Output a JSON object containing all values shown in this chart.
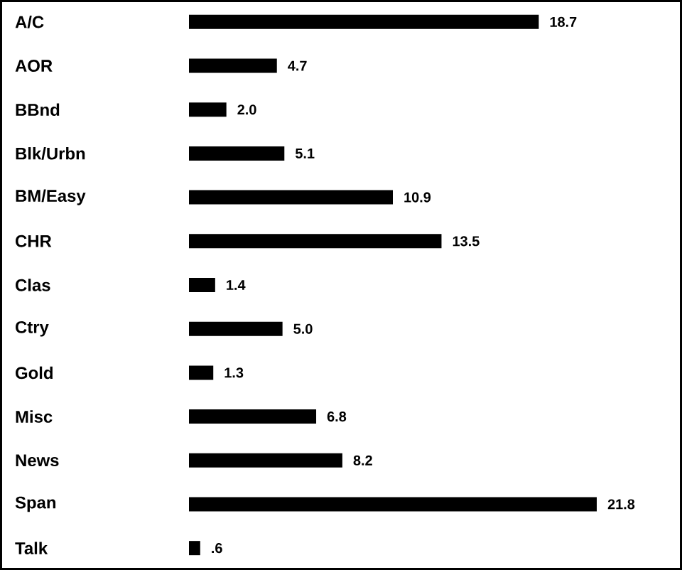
{
  "chart_data": {
    "type": "bar",
    "orientation": "horizontal",
    "categories": [
      "A/C",
      "AOR",
      "BBnd",
      "Blk/Urbn",
      "BM/Easy",
      "CHR",
      "Clas",
      "Ctry",
      "Gold",
      "Misc",
      "News",
      "Span",
      "Talk"
    ],
    "values": [
      18.7,
      4.7,
      2.0,
      5.1,
      10.9,
      13.5,
      1.4,
      5.0,
      1.3,
      6.8,
      8.2,
      21.8,
      0.6
    ],
    "value_labels": [
      "18.7",
      "4.7",
      "2.0",
      "5.1",
      "10.9",
      "13.5",
      "1.4",
      "5.0",
      "1.3",
      "6.8",
      "8.2",
      "21.8",
      ".6"
    ],
    "color": "#000000"
  }
}
